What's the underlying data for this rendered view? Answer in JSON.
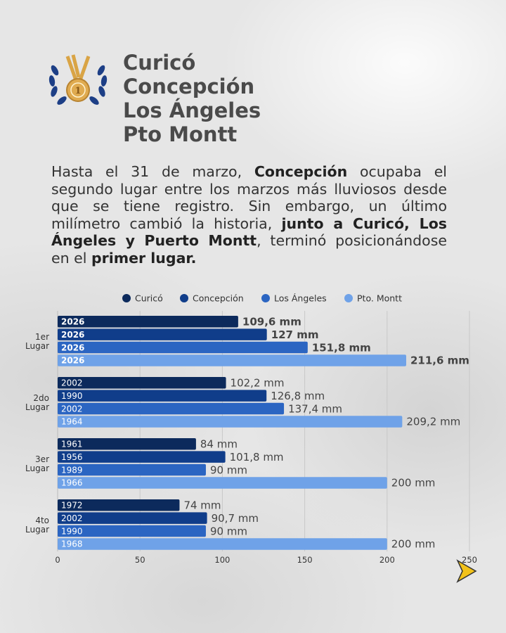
{
  "header": {
    "title_lines": [
      "Curicó",
      "Concepción",
      "Los Ángeles",
      "Pto Montt"
    ],
    "medal_number": "1"
  },
  "paragraph": {
    "p1": "Hasta el 31 de marzo, ",
    "b1": "Concepción",
    "p2": " ocupaba el segundo lugar entre los marzos más lluviosos desde que se tiene registro. Sin embargo, un último milímetro cambió la historia, ",
    "b2": "junto a Curicó, Los Ángeles y Puerto Montt",
    "p3": ", terminó posicionándose en el ",
    "b3": "primer lugar."
  },
  "chart_data": {
    "type": "bar",
    "orientation": "horizontal",
    "legend": [
      "Curicó",
      "Concepción",
      "Los Ángeles",
      "Pto. Montt"
    ],
    "legend_placement": "top",
    "colors": [
      "#0c2a5c",
      "#103d8a",
      "#2b65c2",
      "#6fa2e8"
    ],
    "categories": [
      "1er Lugar",
      "2do Lugar",
      "3er Lugar",
      "4to Lugar"
    ],
    "series": [
      {
        "name": "Curicó",
        "values": [
          109.6,
          102.2,
          84,
          74
        ],
        "years": [
          "2026",
          "2002",
          "1961",
          "1972"
        ],
        "labels": [
          "109,6 mm",
          "102,2 mm",
          "84 mm",
          "74 mm"
        ]
      },
      {
        "name": "Concepción",
        "values": [
          127,
          126.8,
          101.8,
          90.7
        ],
        "years": [
          "2026",
          "1990",
          "1956",
          "2002"
        ],
        "labels": [
          "127 mm",
          "126,8 mm",
          "101,8 mm",
          "90,7 mm"
        ]
      },
      {
        "name": "Los Ángeles",
        "values": [
          151.8,
          137.4,
          90,
          90
        ],
        "years": [
          "2026",
          "2002",
          "1989",
          "1990"
        ],
        "labels": [
          "151,8 mm",
          "137,4 mm",
          "90 mm",
          "90 mm"
        ]
      },
      {
        "name": "Pto. Montt",
        "values": [
          211.6,
          209.2,
          200,
          200
        ],
        "years": [
          "2026",
          "1964",
          "1966",
          "1968"
        ],
        "labels": [
          "211,6 mm",
          "209,2 mm",
          "200 mm",
          "200 mm"
        ]
      }
    ],
    "xticks": [
      0,
      50,
      100,
      150,
      200,
      250
    ],
    "xlim": [
      0,
      250
    ],
    "grid": true
  }
}
